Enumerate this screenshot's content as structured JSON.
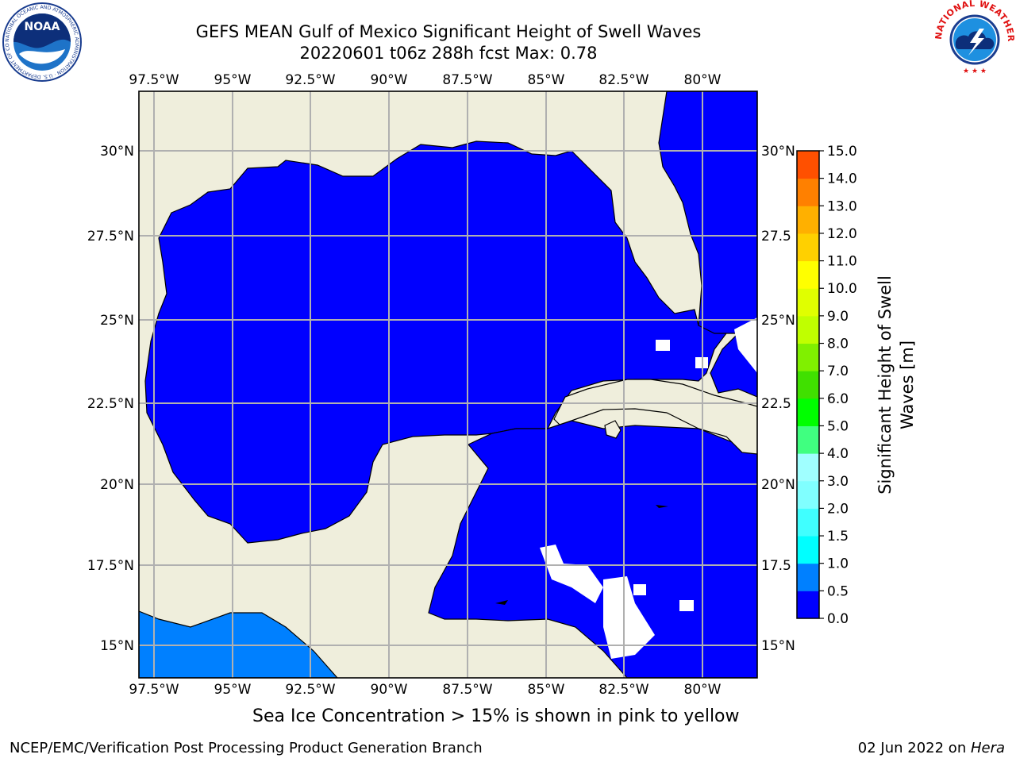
{
  "title": {
    "line1": "GEFS MEAN Gulf of Mexico Significant Height of Swell Waves",
    "line2": "20220601 t06z 288h fcst   Max: 0.78"
  },
  "map": {
    "lon_labels": [
      "97.5°W",
      "95°W",
      "92.5°W",
      "90°W",
      "87.5°W",
      "85°W",
      "82.5°W",
      "80°W"
    ],
    "lat_labels": [
      "30°N",
      "27.5°N",
      "25°N",
      "22.5°N",
      "20°N",
      "17.5°N",
      "15°N"
    ],
    "lat_labels_right": [
      "30°N",
      "27.5",
      "25°N",
      "22.5",
      "20°N",
      "17.5",
      "15°N"
    ],
    "colors": {
      "land": "#efeedc",
      "water_low": "#0000ff",
      "water_mid": "#0080ff",
      "grid": "#b0b0b0"
    }
  },
  "colorbar": {
    "label_line1": "Significant Height of Swell",
    "label_line2": "Waves [m]",
    "ticks": [
      "0.0",
      "0.5",
      "1.0",
      "1.5",
      "2.0",
      "3.0",
      "4.0",
      "5.0",
      "6.0",
      "7.0",
      "8.0",
      "9.0",
      "10.0",
      "11.0",
      "12.0",
      "13.0",
      "14.0",
      "15.0"
    ],
    "colors": [
      "#0000ff",
      "#0080ff",
      "#00ffff",
      "#40ffff",
      "#80ffff",
      "#a0ffff",
      "#40ff80",
      "#00ff00",
      "#40e000",
      "#80f000",
      "#c0ff00",
      "#e0ff00",
      "#ffff00",
      "#ffd000",
      "#ffb000",
      "#ff8000",
      "#ff5000",
      "#ff2000",
      "#ff0000"
    ]
  },
  "logos": {
    "noaa_text": "NOAA",
    "noaa_ring": "NATIONAL OCEANIC AND ATMOSPHERIC ADMINISTRATION · U.S. DEPARTMENT OF COMMERCE",
    "nws_ring": "NATIONAL WEATHER SERVICE"
  },
  "caption": "Sea Ice Concentration > 15% is shown in pink to yellow",
  "footer": {
    "left": "NCEP/EMC/Verification Post Processing Product Generation Branch",
    "right_prefix": "02 Jun 2022 on ",
    "right_host": "Hera"
  }
}
